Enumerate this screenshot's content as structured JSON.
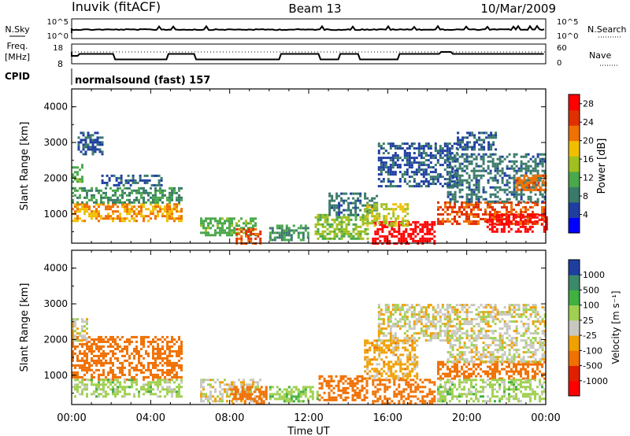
{
  "header": {
    "station": "Inuvik (fitACF)",
    "beam": "Beam 13",
    "date": "10/Mar/2009"
  },
  "panels": {
    "nsky": {
      "label": "N.Sky",
      "ticks": [
        "10^5",
        "10^0"
      ]
    },
    "nsearch": {
      "label": "N.Search",
      "ticks": [
        "10^5",
        "10^0"
      ]
    },
    "freq": {
      "label_top": "Freq.",
      "label_unit": "[MHz]",
      "ticks": [
        "18",
        "8"
      ]
    },
    "nave": {
      "label": "Nave",
      "ticks": [
        "60",
        "0"
      ]
    },
    "cpid": {
      "label": "CPID",
      "mode": "normalsound (fast) 157"
    }
  },
  "colors": {
    "power_scale": [
      "#0000ff",
      "#1e3fa0",
      "#3a7a6a",
      "#4aa84a",
      "#a0c020",
      "#f0c000",
      "#f07000",
      "#e03000",
      "#ff0000"
    ],
    "velocity_scale": [
      "#ff0000",
      "#f02000",
      "#f07000",
      "#f0a000",
      "#f0c040",
      "#c8c8c0",
      "#a0d050",
      "#40b040",
      "#3a8a6a",
      "#1e3fa0",
      "#0000ff"
    ]
  },
  "chart_data": [
    {
      "type": "heatmap",
      "name": "power-panel",
      "xlabel": "Time UT",
      "ylabel": "Slant Range [km]",
      "x_ticks": [
        "00:00",
        "04:00",
        "08:00",
        "12:00",
        "16:00",
        "20:00",
        "00:00"
      ],
      "x_range_hours": [
        0,
        24
      ],
      "y_ticks": [
        1000,
        2000,
        3000,
        4000
      ],
      "y_range_km": [
        180,
        4500
      ],
      "colorbar": {
        "label": "Power [dB]",
        "ticks": [
          4,
          8,
          12,
          16,
          20,
          24,
          28
        ],
        "range": [
          0,
          30
        ]
      },
      "regions": [
        {
          "t": [
            0.0,
            5.6
          ],
          "r": [
            800,
            1300
          ],
          "v": 20
        },
        {
          "t": [
            0.0,
            5.6
          ],
          "r": [
            1300,
            1750
          ],
          "v": 10
        },
        {
          "t": [
            1.5,
            4.5
          ],
          "r": [
            1800,
            2100
          ],
          "v": 6
        },
        {
          "t": [
            0.0,
            0.5
          ],
          "r": [
            1900,
            2400
          ],
          "v": 12
        },
        {
          "t": [
            0.3,
            1.5
          ],
          "r": [
            2700,
            3300
          ],
          "v": 6
        },
        {
          "t": [
            6.5,
            9.3
          ],
          "r": [
            400,
            900
          ],
          "v": 12
        },
        {
          "t": [
            8.3,
            9.5
          ],
          "r": [
            200,
            600
          ],
          "v": 24
        },
        {
          "t": [
            10.0,
            12.0
          ],
          "r": [
            300,
            700
          ],
          "v": 10
        },
        {
          "t": [
            12.3,
            15.0
          ],
          "r": [
            300,
            1000
          ],
          "v": 14
        },
        {
          "t": [
            13.0,
            15.5
          ],
          "r": [
            1000,
            1600
          ],
          "v": 8
        },
        {
          "t": [
            15.2,
            18.4
          ],
          "r": [
            200,
            800
          ],
          "v": 29
        },
        {
          "t": [
            14.8,
            17.0
          ],
          "r": [
            700,
            1300
          ],
          "v": 16
        },
        {
          "t": [
            15.5,
            19.5
          ],
          "r": [
            1800,
            3000
          ],
          "v": 6
        },
        {
          "t": [
            18.5,
            24.0
          ],
          "r": [
            700,
            1350
          ],
          "v": 24
        },
        {
          "t": [
            21.0,
            24.0
          ],
          "r": [
            500,
            1000
          ],
          "v": 29
        },
        {
          "t": [
            19.0,
            24.0
          ],
          "r": [
            1350,
            2700
          ],
          "v": 8
        },
        {
          "t": [
            22.5,
            24.0
          ],
          "r": [
            1700,
            2100
          ],
          "v": 22
        },
        {
          "t": [
            19.5,
            21.5
          ],
          "r": [
            2800,
            3300
          ],
          "v": 6
        }
      ]
    },
    {
      "type": "heatmap",
      "name": "velocity-panel",
      "xlabel": "Time UT",
      "ylabel": "Slant Range [km]",
      "x_ticks": [
        "00:00",
        "04:00",
        "08:00",
        "12:00",
        "16:00",
        "20:00",
        "00:00"
      ],
      "x_range_hours": [
        0,
        24
      ],
      "y_ticks": [
        1000,
        2000,
        3000,
        4000
      ],
      "y_range_km": [
        180,
        4500
      ],
      "colorbar": {
        "label": "Velocity [m s⁻¹]",
        "ticks": [
          -1000,
          -500,
          -100,
          -25,
          25,
          100,
          500,
          1000
        ]
      },
      "regions": [
        {
          "t": [
            0.0,
            5.6
          ],
          "r": [
            900,
            2100
          ],
          "v": -200
        },
        {
          "t": [
            0.0,
            5.6
          ],
          "r": [
            400,
            900
          ],
          "v": 60
        },
        {
          "t": [
            0.0,
            0.8
          ],
          "r": [
            2000,
            2600
          ],
          "v": 0
        },
        {
          "t": [
            6.5,
            9.5
          ],
          "r": [
            300,
            900
          ],
          "v": 0
        },
        {
          "t": [
            8.0,
            9.8
          ],
          "r": [
            200,
            700
          ],
          "v": -150
        },
        {
          "t": [
            10.0,
            12.5
          ],
          "r": [
            300,
            700
          ],
          "v": 80
        },
        {
          "t": [
            12.5,
            15.0
          ],
          "r": [
            300,
            1000
          ],
          "v": -200
        },
        {
          "t": [
            15.2,
            18.4
          ],
          "r": [
            200,
            900
          ],
          "v": -150
        },
        {
          "t": [
            14.8,
            17.5
          ],
          "r": [
            900,
            2000
          ],
          "v": -60
        },
        {
          "t": [
            15.5,
            19.5
          ],
          "r": [
            2000,
            3000
          ],
          "v": 0
        },
        {
          "t": [
            18.5,
            24.0
          ],
          "r": [
            900,
            1400
          ],
          "v": -250
        },
        {
          "t": [
            18.5,
            24.0
          ],
          "r": [
            300,
            900
          ],
          "v": 60
        },
        {
          "t": [
            19.0,
            24.0
          ],
          "r": [
            1400,
            3000
          ],
          "v": 0
        }
      ]
    }
  ]
}
